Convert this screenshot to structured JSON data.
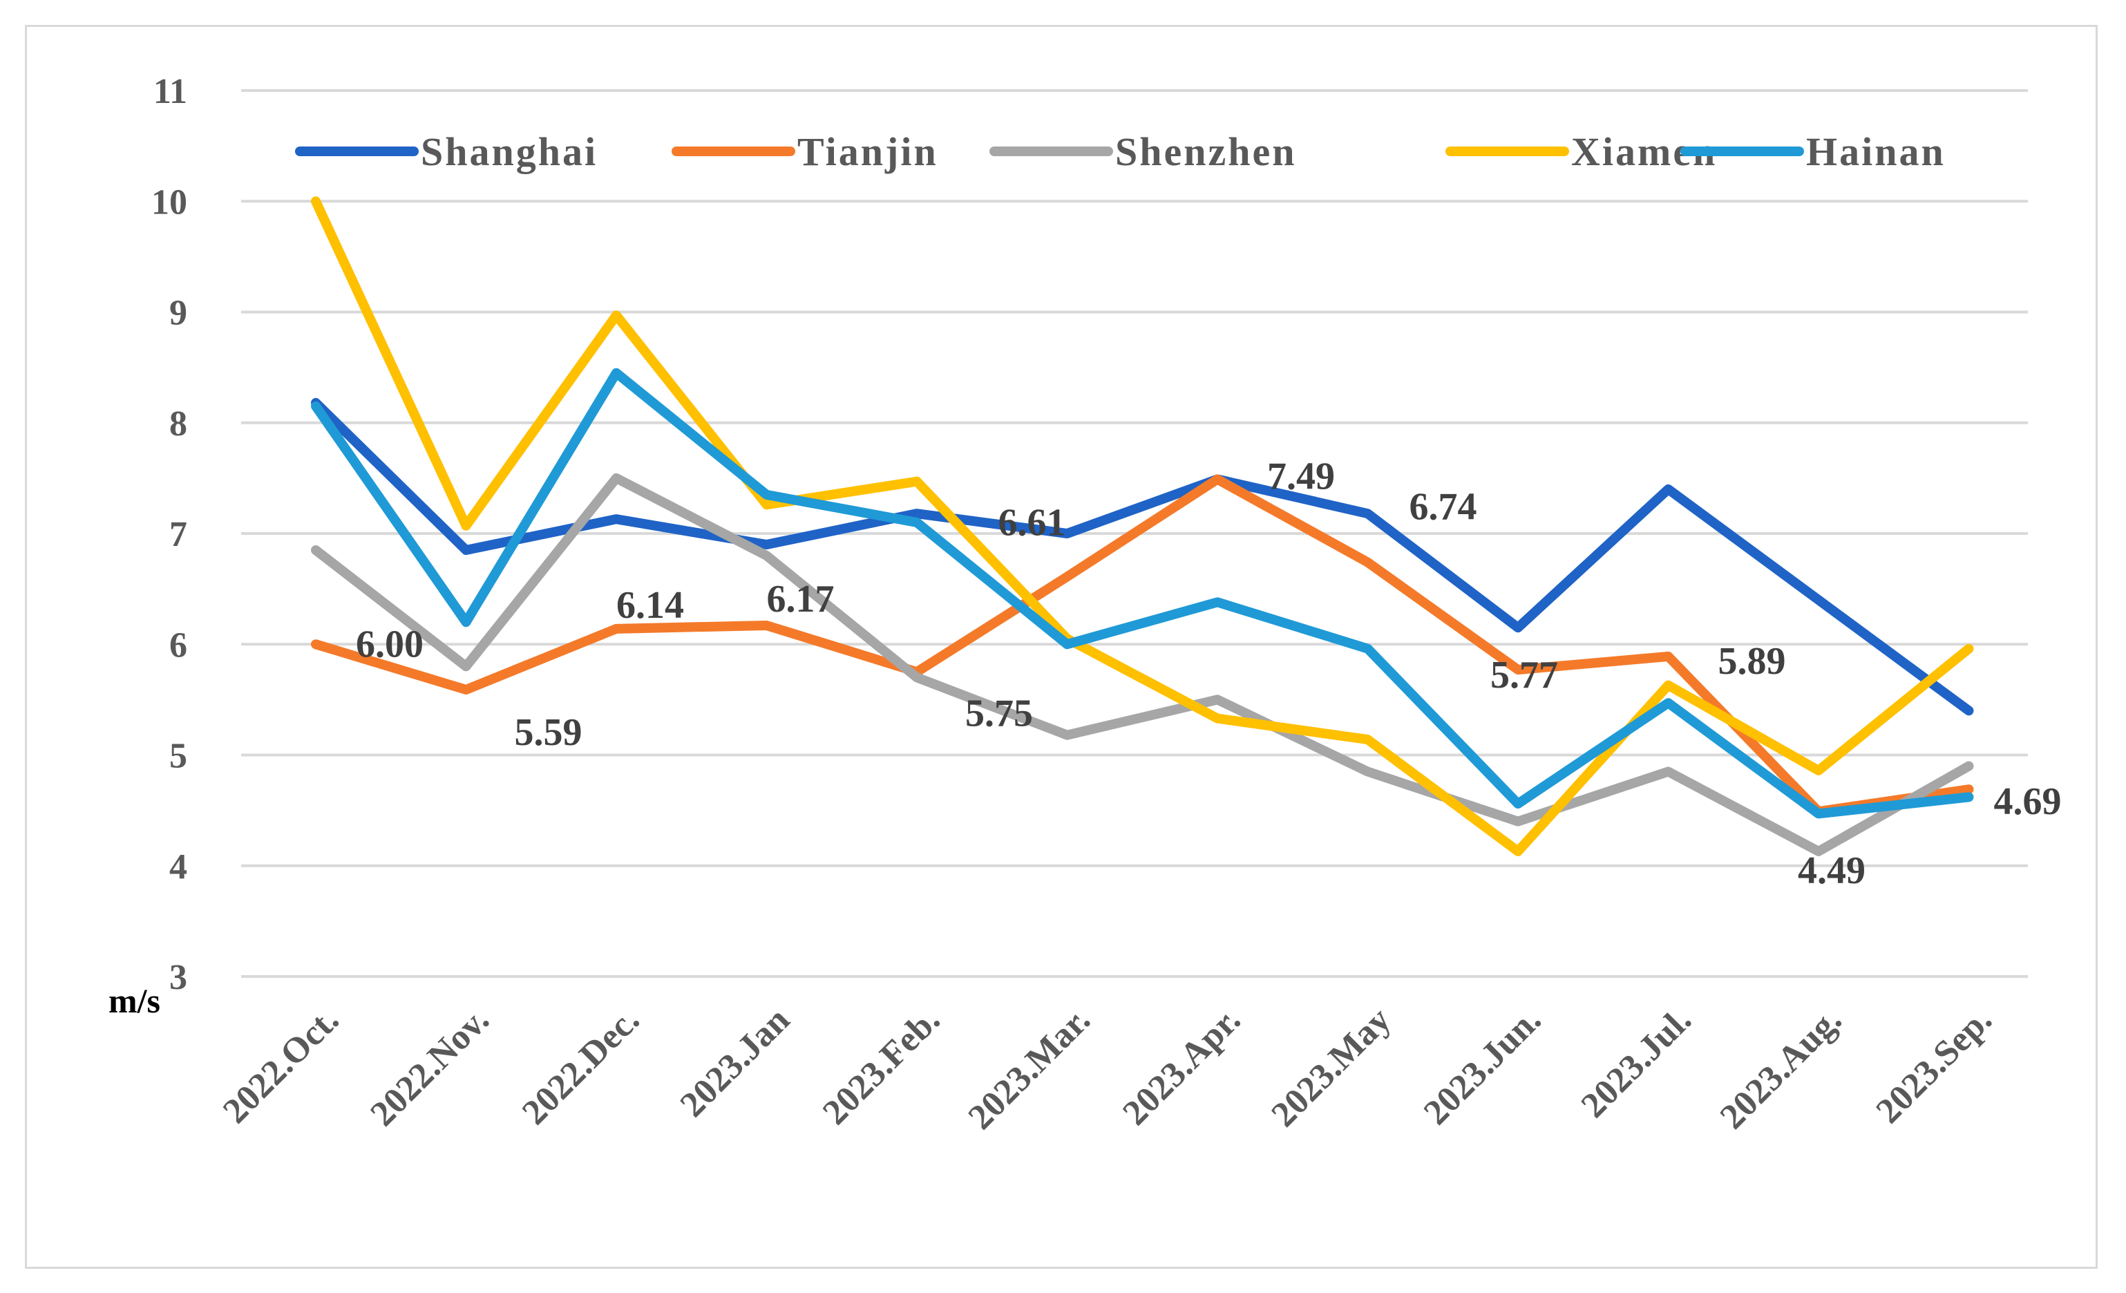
{
  "chart_data": {
    "type": "line",
    "title": "",
    "ylabel": "m/s",
    "xlabel": "",
    "ylim": [
      3,
      11
    ],
    "yticks": [
      3,
      4,
      5,
      6,
      7,
      8,
      9,
      10,
      11
    ],
    "grid": true,
    "legend_position": "top",
    "categories": [
      "2022.Oct.",
      "2022.Nov.",
      "2022.Dec.",
      "2023.Jan",
      "2023.Feb.",
      "2023.Mar.",
      "2023.Apr.",
      "2023.May",
      "2023.Jun.",
      "2023.Jul.",
      "2023.Aug.",
      "2023.Sep."
    ],
    "series": [
      {
        "name": "Shanghai",
        "color": "#1f63c6",
        "values": [
          8.18,
          6.85,
          7.13,
          6.9,
          7.18,
          7.0,
          7.49,
          7.18,
          6.15,
          7.4,
          6.4,
          5.4
        ]
      },
      {
        "name": "Tianjin",
        "color": "#f47a2a",
        "values": [
          6.0,
          5.59,
          6.14,
          6.17,
          5.75,
          6.61,
          7.49,
          6.74,
          5.77,
          5.89,
          4.49,
          4.69
        ]
      },
      {
        "name": "Shenzhen",
        "color": "#a6a6a6",
        "values": [
          6.85,
          5.8,
          7.5,
          6.8,
          5.7,
          5.18,
          5.5,
          4.85,
          4.4,
          4.85,
          4.13,
          4.9
        ]
      },
      {
        "name": "Xiamen",
        "color": "#ffc000",
        "values": [
          10.0,
          7.07,
          8.97,
          7.26,
          7.47,
          6.05,
          5.33,
          5.14,
          4.13,
          5.63,
          4.86,
          5.96
        ]
      },
      {
        "name": "Hainan",
        "color": "#1f9ad6",
        "values": [
          8.15,
          6.2,
          8.45,
          7.35,
          7.1,
          6.0,
          6.38,
          5.96,
          4.56,
          5.47,
          4.47,
          4.62
        ]
      }
    ],
    "data_labels": [
      {
        "series": "Tianjin",
        "index": 0,
        "text": "6.00"
      },
      {
        "series": "Tianjin",
        "index": 1,
        "text": "5.59"
      },
      {
        "series": "Tianjin",
        "index": 2,
        "text": "6.14"
      },
      {
        "series": "Tianjin",
        "index": 3,
        "text": "6.17"
      },
      {
        "series": "Tianjin",
        "index": 4,
        "text": "5.75"
      },
      {
        "series": "Tianjin",
        "index": 5,
        "text": "6.61"
      },
      {
        "series": "Tianjin",
        "index": 6,
        "text": "7.49"
      },
      {
        "series": "Tianjin",
        "index": 7,
        "text": "6.74"
      },
      {
        "series": "Tianjin",
        "index": 8,
        "text": "5.77"
      },
      {
        "series": "Tianjin",
        "index": 9,
        "text": "5.89"
      },
      {
        "series": "Tianjin",
        "index": 10,
        "text": "4.49"
      },
      {
        "series": "Tianjin",
        "index": 11,
        "text": "4.69"
      }
    ],
    "gridline_color": "#d9d9d9"
  }
}
